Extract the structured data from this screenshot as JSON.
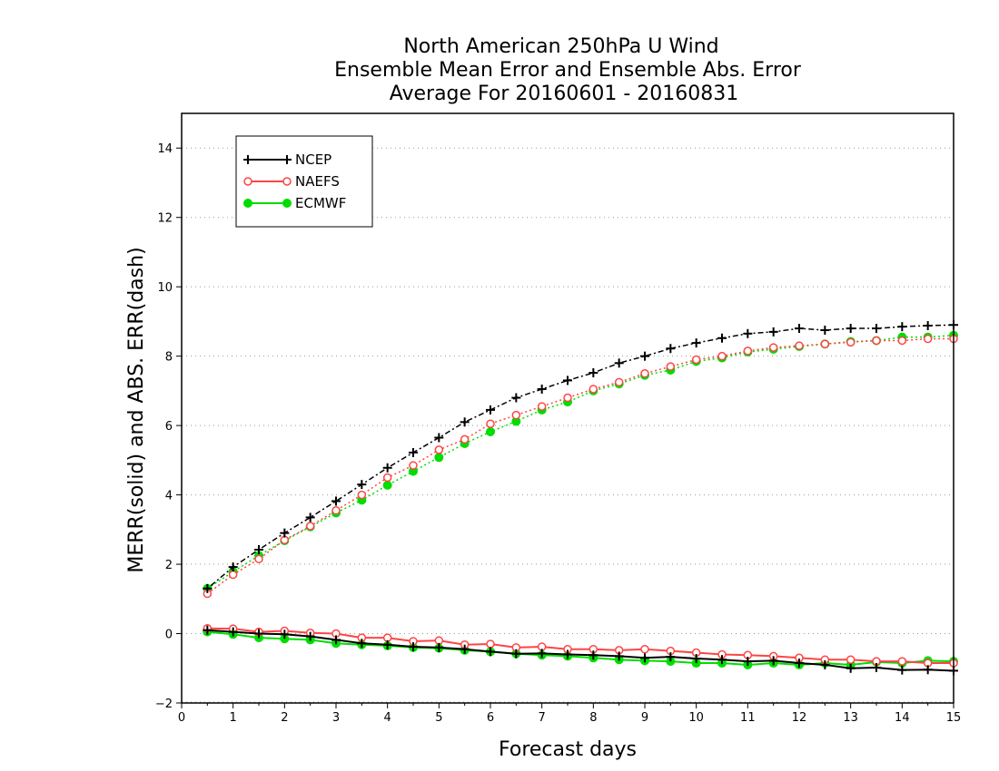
{
  "chart_data": {
    "type": "line",
    "title_lines": [
      "North American 250hPa U Wind",
      "Ensemble Mean Error and Ensemble Abs. Error",
      "Average For 20160601 - 20160831"
    ],
    "xlabel": "Forecast days",
    "ylabel": "MERR(solid) and ABS. ERR(dash)",
    "xlim": [
      0,
      15
    ],
    "ylim": [
      -2,
      15
    ],
    "xticks": [
      0,
      1,
      2,
      3,
      4,
      5,
      6,
      7,
      8,
      9,
      10,
      11,
      12,
      13,
      14,
      15
    ],
    "yticks": [
      -2,
      0,
      2,
      4,
      6,
      8,
      10,
      12,
      14
    ],
    "grid": "horizontal dotted",
    "legend_position": "top-left",
    "x": [
      0.5,
      1,
      1.5,
      2,
      2.5,
      3,
      3.5,
      4,
      4.5,
      5,
      5.5,
      6,
      6.5,
      7,
      7.5,
      8,
      8.5,
      9,
      9.5,
      10,
      10.5,
      11,
      11.5,
      12,
      12.5,
      13,
      13.5,
      14,
      14.5,
      15
    ],
    "series": [
      {
        "name": "NCEP",
        "color": "#000000",
        "marker": "plus",
        "mean_error": [
          0.1,
          0.05,
          0.0,
          -0.02,
          -0.08,
          -0.18,
          -0.28,
          -0.32,
          -0.38,
          -0.4,
          -0.45,
          -0.52,
          -0.58,
          -0.57,
          -0.6,
          -0.62,
          -0.65,
          -0.7,
          -0.67,
          -0.72,
          -0.75,
          -0.8,
          -0.78,
          -0.85,
          -0.9,
          -1.0,
          -0.98,
          -1.05,
          -1.04,
          -1.07
        ],
        "abs_error": [
          1.3,
          1.92,
          2.42,
          2.9,
          3.35,
          3.82,
          4.3,
          4.78,
          5.22,
          5.65,
          6.1,
          6.45,
          6.8,
          7.05,
          7.3,
          7.52,
          7.8,
          8.0,
          8.22,
          8.38,
          8.52,
          8.65,
          8.7,
          8.8,
          8.75,
          8.8,
          8.8,
          8.85,
          8.88,
          8.9
        ]
      },
      {
        "name": "NAEFS",
        "color": "#ff4444",
        "marker": "circle",
        "mean_error": [
          0.15,
          0.14,
          0.05,
          0.08,
          0.02,
          0.0,
          -0.12,
          -0.12,
          -0.22,
          -0.2,
          -0.32,
          -0.3,
          -0.4,
          -0.38,
          -0.45,
          -0.45,
          -0.48,
          -0.45,
          -0.5,
          -0.55,
          -0.6,
          -0.62,
          -0.65,
          -0.7,
          -0.75,
          -0.75,
          -0.8,
          -0.8,
          -0.85,
          -0.85
        ],
        "abs_error": [
          1.15,
          1.7,
          2.15,
          2.7,
          3.1,
          3.55,
          4.0,
          4.5,
          4.85,
          5.3,
          5.6,
          6.05,
          6.3,
          6.55,
          6.8,
          7.05,
          7.25,
          7.5,
          7.7,
          7.9,
          8.0,
          8.15,
          8.25,
          8.3,
          8.35,
          8.4,
          8.45,
          8.45,
          8.5,
          8.5
        ]
      },
      {
        "name": "ECMWF",
        "color": "#00dd00",
        "marker": "filled-circle",
        "mean_error": [
          0.05,
          -0.02,
          -0.12,
          -0.15,
          -0.18,
          -0.28,
          -0.32,
          -0.35,
          -0.4,
          -0.42,
          -0.48,
          -0.52,
          -0.58,
          -0.62,
          -0.65,
          -0.7,
          -0.75,
          -0.78,
          -0.8,
          -0.85,
          -0.85,
          -0.9,
          -0.85,
          -0.9,
          -0.85,
          -0.9,
          -0.82,
          -0.85,
          -0.78,
          -0.8
        ],
        "abs_error": [
          1.3,
          1.78,
          2.25,
          2.68,
          3.08,
          3.48,
          3.85,
          4.28,
          4.68,
          5.08,
          5.48,
          5.82,
          6.12,
          6.45,
          6.68,
          7.0,
          7.2,
          7.45,
          7.6,
          7.85,
          7.95,
          8.12,
          8.2,
          8.28,
          8.35,
          8.42,
          8.45,
          8.55,
          8.55,
          8.6
        ]
      }
    ]
  }
}
